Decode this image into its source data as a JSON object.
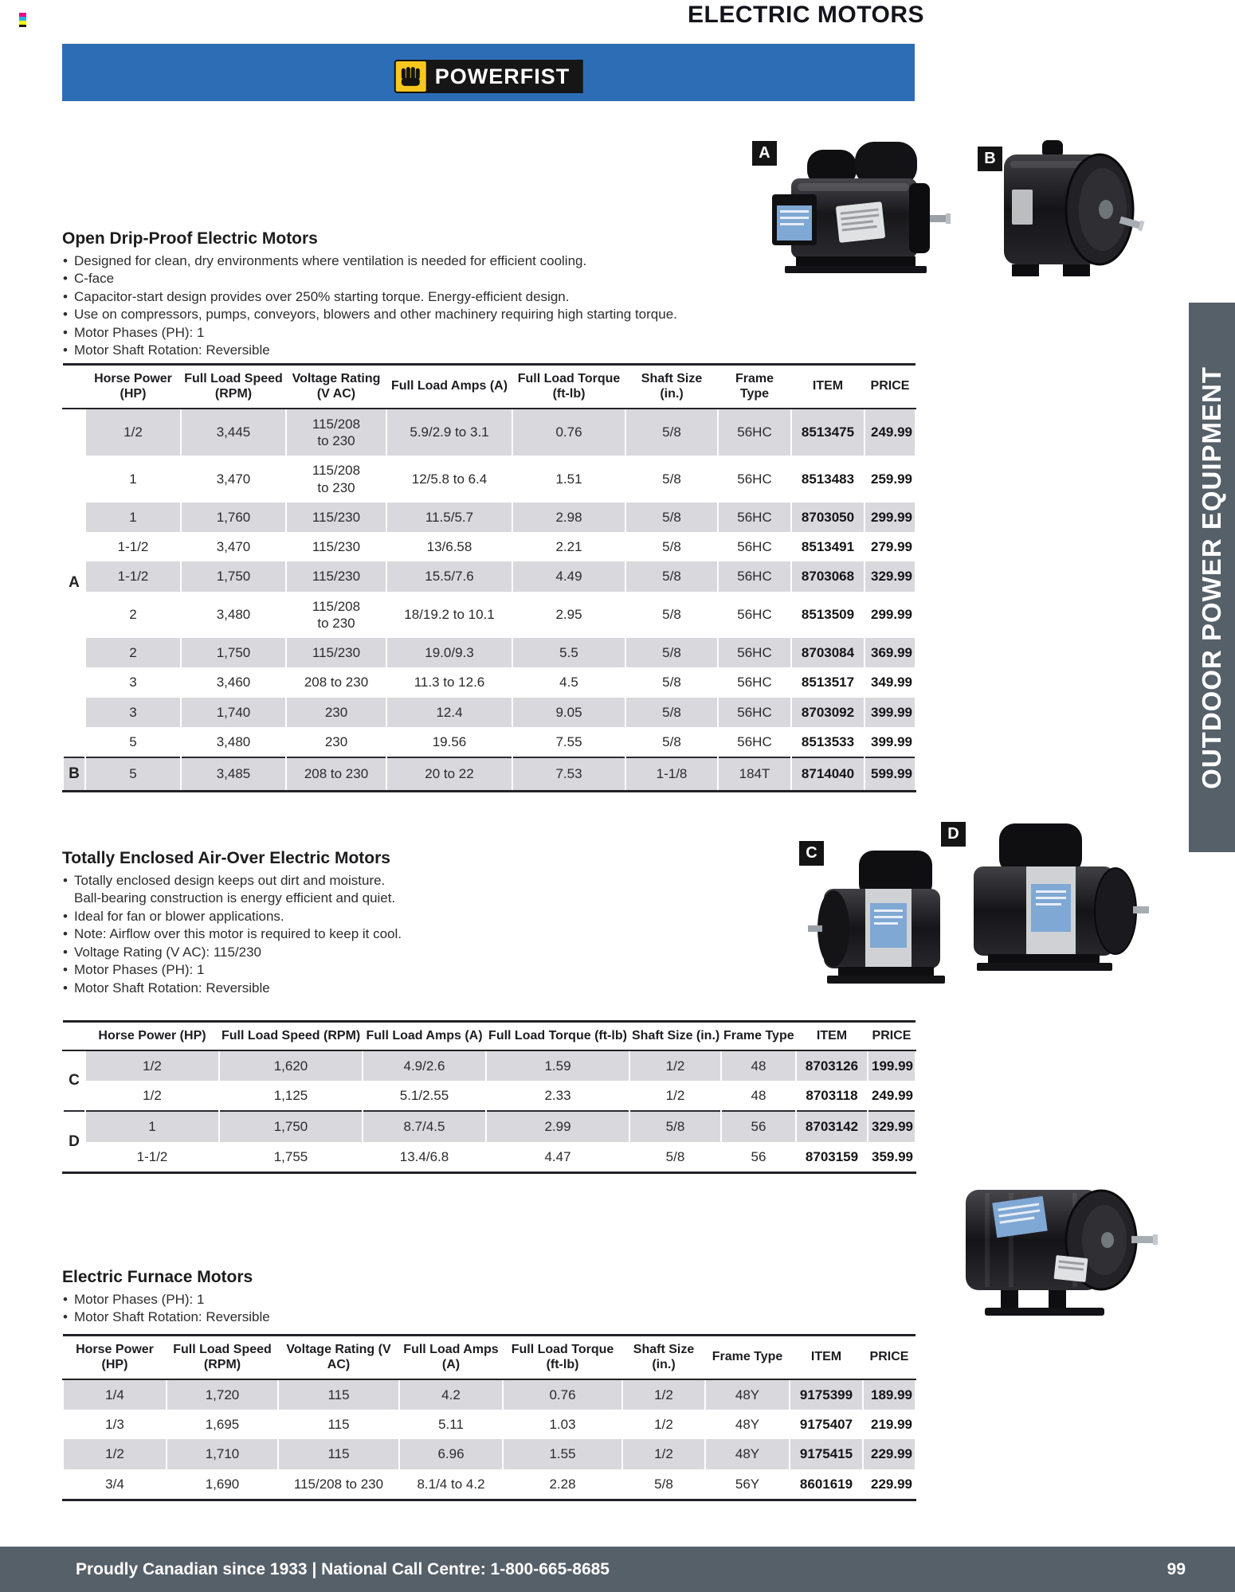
{
  "page": {
    "title": "ELECTRIC MOTORS",
    "brand": "POWERFIST",
    "side_banner": "OUTDOOR POWER EQUIPMENT",
    "footer_text": "Proudly Canadian since 1933 | National Call Centre: 1-800-665-8685",
    "page_number": "99"
  },
  "colors": {
    "banner_blue": "#2d6db6",
    "slate_gray": "#566069",
    "row_stripe": "#d9d9dd",
    "logo_yellow": "#f7c71f"
  },
  "photos": [
    {
      "label": "A"
    },
    {
      "label": "B"
    },
    {
      "label": "C"
    },
    {
      "label": "D"
    }
  ],
  "sections": [
    {
      "heading": "Open Drip-Proof Electric Motors",
      "bullets": [
        "Designed for clean, dry environments where ventilation is needed for efficient cooling.",
        "C-face",
        "Capacitor-start design provides over 250% starting torque. Energy-efficient design.",
        "Use on compressors, pumps, conveyors, blowers and other machinery requiring high starting torque.",
        "Motor Phases (PH): 1",
        "Motor Shaft Rotation: Reversible"
      ],
      "table": {
        "headers": [
          "Horse Power (HP)",
          "Full Load Speed (RPM)",
          "Voltage Rating (V AC)",
          "Full Load Amps (A)",
          "Full Load Torque (ft-lb)",
          "Shaft Size (in.)",
          "Frame Type",
          "ITEM",
          "PRICE"
        ],
        "row_markers": [
          {
            "label": "A",
            "from": 0,
            "span": 10
          },
          {
            "label": "B",
            "from": 10,
            "span": 1
          }
        ],
        "rows": [
          {
            "cells": [
              "1/2",
              "3,445",
              "115/208\nto 230",
              "5.9/2.9 to 3.1",
              "0.76",
              "5/8",
              "56HC",
              "8513475",
              "249.99"
            ]
          },
          {
            "cells": [
              "1",
              "3,470",
              "115/208\nto 230",
              "12/5.8 to 6.4",
              "1.51",
              "5/8",
              "56HC",
              "8513483",
              "259.99"
            ]
          },
          {
            "cells": [
              "1",
              "1,760",
              "115/230",
              "11.5/5.7",
              "2.98",
              "5/8",
              "56HC",
              "8703050",
              "299.99"
            ]
          },
          {
            "cells": [
              "1-1/2",
              "3,470",
              "115/230",
              "13/6.58",
              "2.21",
              "5/8",
              "56HC",
              "8513491",
              "279.99"
            ]
          },
          {
            "cells": [
              "1-1/2",
              "1,750",
              "115/230",
              "15.5/7.6",
              "4.49",
              "5/8",
              "56HC",
              "8703068",
              "329.99"
            ]
          },
          {
            "cells": [
              "2",
              "3,480",
              "115/208\nto 230",
              "18/19.2 to 10.1",
              "2.95",
              "5/8",
              "56HC",
              "8513509",
              "299.99"
            ]
          },
          {
            "cells": [
              "2",
              "1,750",
              "115/230",
              "19.0/9.3",
              "5.5",
              "5/8",
              "56HC",
              "8703084",
              "369.99"
            ]
          },
          {
            "cells": [
              "3",
              "3,460",
              "208 to 230",
              "11.3 to 12.6",
              "4.5",
              "5/8",
              "56HC",
              "8513517",
              "349.99"
            ]
          },
          {
            "cells": [
              "3",
              "1,740",
              "230",
              "12.4",
              "9.05",
              "5/8",
              "56HC",
              "8703092",
              "399.99"
            ]
          },
          {
            "cells": [
              "5",
              "3,480",
              "230",
              "19.56",
              "7.55",
              "5/8",
              "56HC",
              "8513533",
              "399.99"
            ]
          },
          {
            "cells": [
              "5",
              "3,485",
              "208 to 230",
              "20 to 22",
              "7.53",
              "1-1/8",
              "184T",
              "8714040",
              "599.99"
            ]
          }
        ]
      }
    },
    {
      "heading": "Totally Enclosed Air-Over Electric Motors",
      "bullets": [
        "Totally enclosed design keeps out dirt and moisture.\nBall-bearing construction is energy efficient and quiet.",
        "Ideal for fan or blower applications.",
        "Note: Airflow over this motor is required to keep it cool.",
        "Voltage Rating (V AC): 115/230",
        "Motor Phases (PH): 1",
        "Motor Shaft Rotation: Reversible"
      ],
      "table": {
        "headers": [
          "Horse Power (HP)",
          "Full Load Speed (RPM)",
          "Full Load Amps (A)",
          "Full Load Torque (ft-lb)",
          "Shaft Size (in.)",
          "Frame Type",
          "ITEM",
          "PRICE"
        ],
        "row_markers": [
          {
            "label": "C",
            "from": 0,
            "span": 2
          },
          {
            "label": "D",
            "from": 2,
            "span": 2
          }
        ],
        "rows": [
          {
            "cells": [
              "1/2",
              "1,620",
              "4.9/2.6",
              "1.59",
              "1/2",
              "48",
              "8703126",
              "199.99"
            ]
          },
          {
            "cells": [
              "1/2",
              "1,125",
              "5.1/2.55",
              "2.33",
              "1/2",
              "48",
              "8703118",
              "249.99"
            ]
          },
          {
            "cells": [
              "1",
              "1,750",
              "8.7/4.5",
              "2.99",
              "5/8",
              "56",
              "8703142",
              "329.99"
            ]
          },
          {
            "cells": [
              "1-1/2",
              "1,755",
              "13.4/6.8",
              "4.47",
              "5/8",
              "56",
              "8703159",
              "359.99"
            ]
          }
        ]
      }
    },
    {
      "heading": "Electric Furnace Motors",
      "bullets": [
        "Motor Phases (PH): 1",
        "Motor Shaft Rotation: Reversible"
      ],
      "table": {
        "headers": [
          "Horse Power (HP)",
          "Full Load Speed (RPM)",
          "Voltage Rating (V AC)",
          "Full Load Amps (A)",
          "Full Load Torque (ft-lb)",
          "Shaft Size (in.)",
          "Frame Type",
          "ITEM",
          "PRICE"
        ],
        "row_markers": [],
        "rows": [
          {
            "cells": [
              "1/4",
              "1,720",
              "115",
              "4.2",
              "0.76",
              "1/2",
              "48Y",
              "9175399",
              "189.99"
            ]
          },
          {
            "cells": [
              "1/3",
              "1,695",
              "115",
              "5.11",
              "1.03",
              "1/2",
              "48Y",
              "9175407",
              "219.99"
            ]
          },
          {
            "cells": [
              "1/2",
              "1,710",
              "115",
              "6.96",
              "1.55",
              "1/2",
              "48Y",
              "9175415",
              "229.99"
            ]
          },
          {
            "cells": [
              "3/4",
              "1,690",
              "115/208 to 230",
              "8.1/4 to 4.2",
              "2.28",
              "5/8",
              "56Y",
              "8601619",
              "229.99"
            ]
          }
        ]
      }
    }
  ]
}
